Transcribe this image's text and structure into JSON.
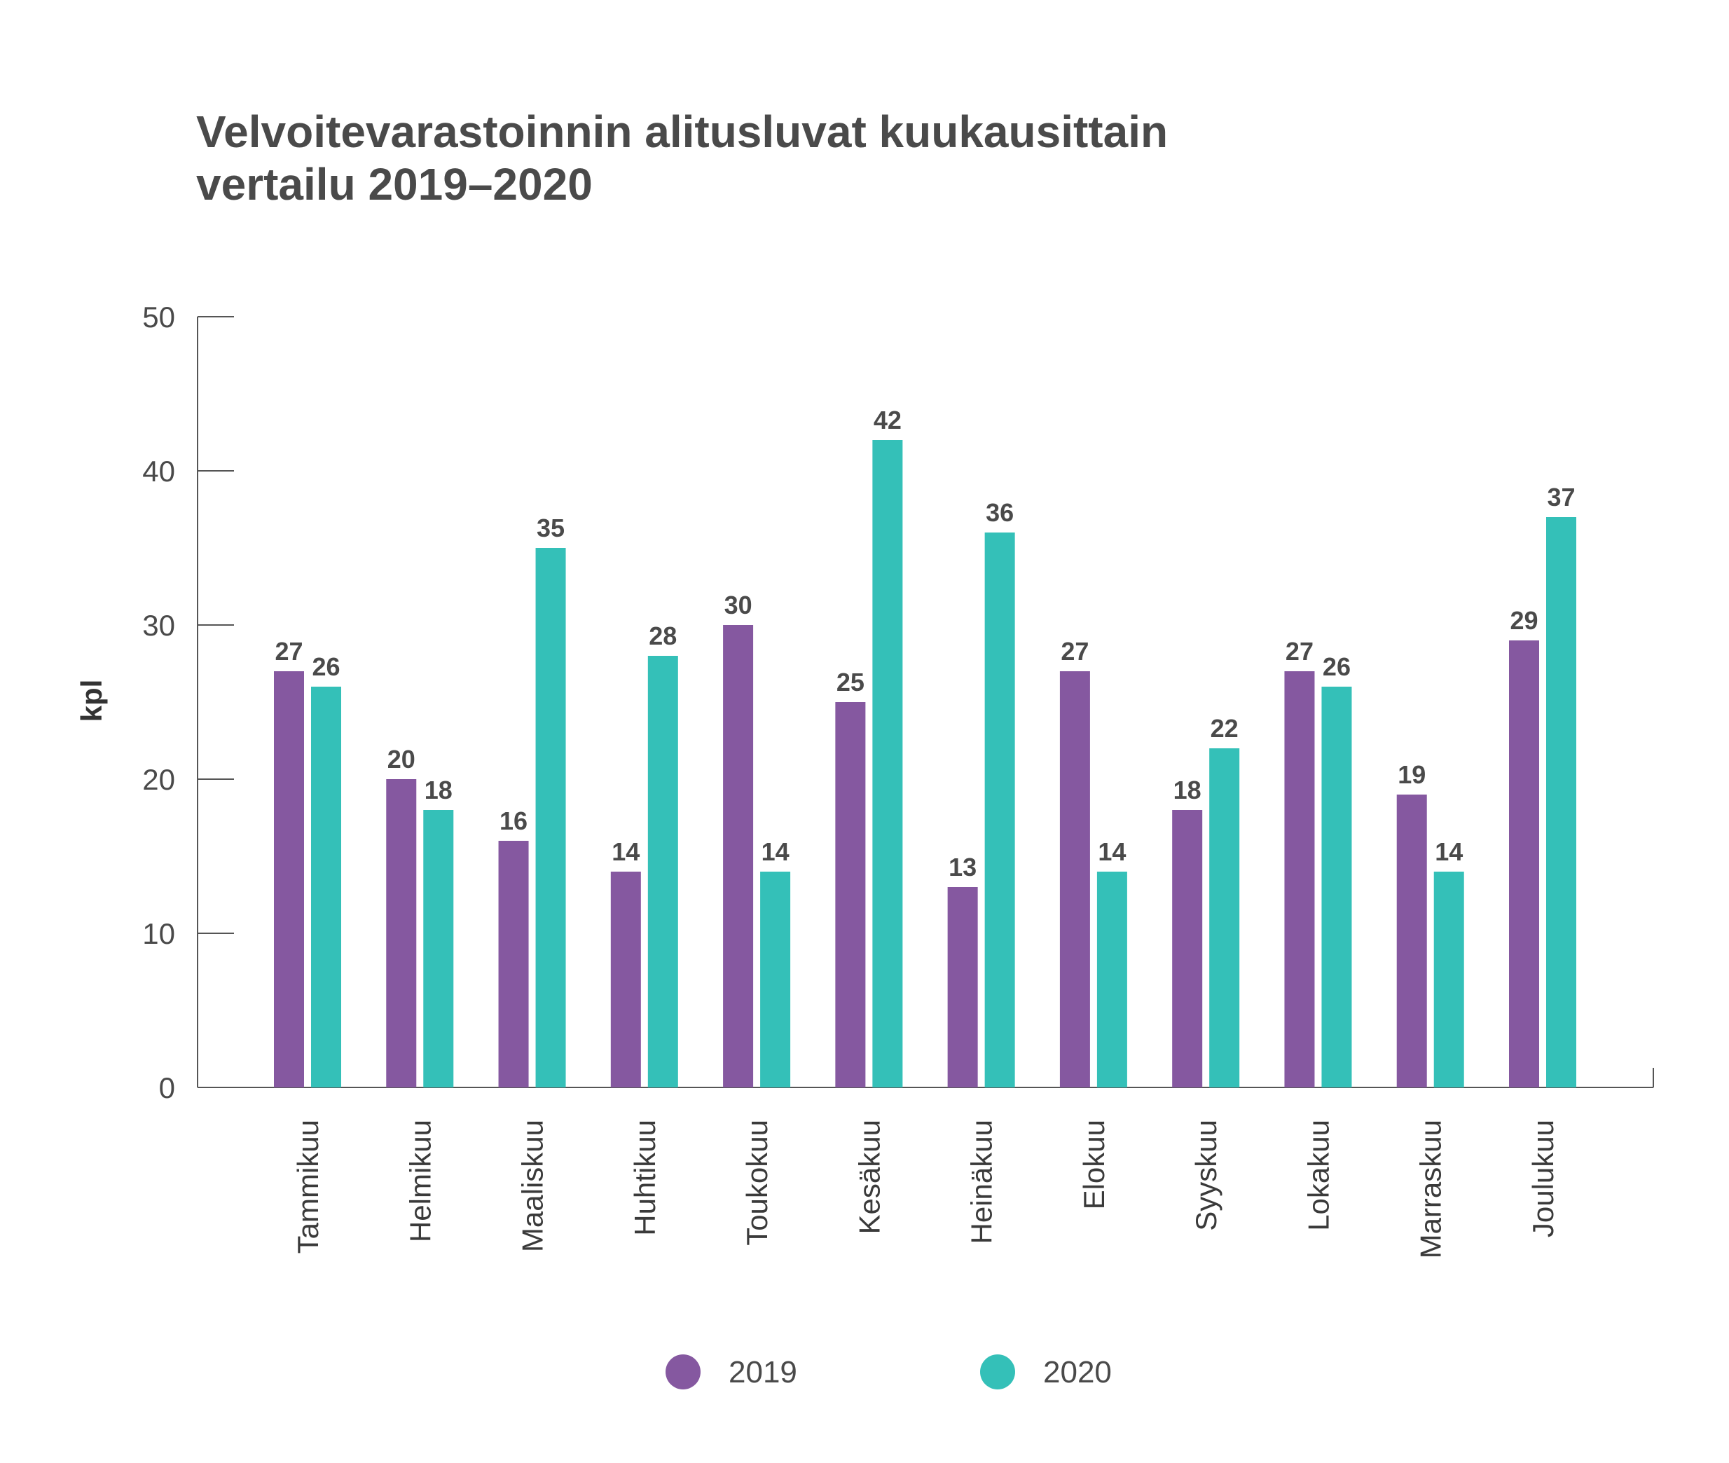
{
  "chart_data": {
    "type": "bar",
    "title": [
      "Velvoitevarastoinnin alitusluvat kuukausittain",
      "vertailu 2019–2020"
    ],
    "ylabel": "kpl",
    "xlabel": "",
    "ylim": [
      0,
      50
    ],
    "yticks": [
      0,
      10,
      20,
      30,
      40,
      50
    ],
    "grid": false,
    "legend_position": "bottom-center",
    "categories": [
      "Tammikuu",
      "Helmikuu",
      "Maaliskuu",
      "Huhtikuu",
      "Toukokuu",
      "Kesäkuu",
      "Heinäkuu",
      "Elokuu",
      "Syyskuu",
      "Lokakuu",
      "Marraskuu",
      "Joulukuu"
    ],
    "series": [
      {
        "name": "2019",
        "color": "#8558a0",
        "values": [
          27,
          20,
          16,
          14,
          30,
          25,
          13,
          27,
          18,
          27,
          19,
          29
        ]
      },
      {
        "name": "2020",
        "color": "#34c0b8",
        "values": [
          26,
          18,
          35,
          28,
          14,
          42,
          36,
          14,
          22,
          26,
          14,
          37
        ]
      }
    ]
  }
}
